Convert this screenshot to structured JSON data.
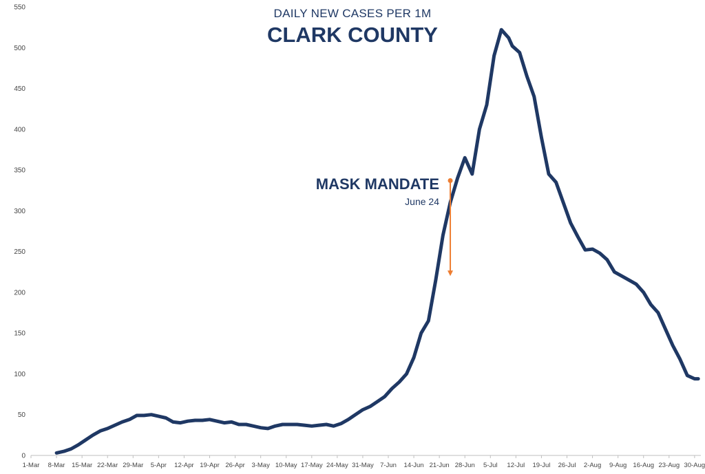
{
  "chart_data": {
    "type": "line",
    "subtitle": "DAILY NEW CASES PER 1M",
    "title": "CLARK COUNTY",
    "xlabel": "",
    "ylabel": "",
    "ylim": [
      0,
      550
    ],
    "yticks": [
      0,
      50,
      100,
      150,
      200,
      250,
      300,
      350,
      400,
      450,
      500,
      550
    ],
    "x_tick_labels": [
      "1-Mar",
      "8-Mar",
      "15-Mar",
      "22-Mar",
      "29-Mar",
      "5-Apr",
      "12-Apr",
      "19-Apr",
      "26-Apr",
      "3-May",
      "10-May",
      "17-May",
      "24-May",
      "31-May",
      "7-Jun",
      "14-Jun",
      "21-Jun",
      "28-Jun",
      "5-Jul",
      "12-Jul",
      "19-Jul",
      "26-Jul",
      "2-Aug",
      "9-Aug",
      "16-Aug",
      "23-Aug",
      "30-Aug"
    ],
    "grid": false,
    "line_color": "#1f3864",
    "annotation": {
      "title": "MASK MANDATE",
      "subtitle": "June 24",
      "x": "24-Jun",
      "y_from": 337,
      "y_to": 220,
      "color": "#ed7d31"
    },
    "series": [
      {
        "x": [
          "8-Mar",
          "10-Mar",
          "12-Mar",
          "14-Mar",
          "16-Mar",
          "18-Mar",
          "20-Mar",
          "22-Mar",
          "24-Mar",
          "26-Mar",
          "28-Mar",
          "30-Mar",
          "1-Apr",
          "3-Apr",
          "5-Apr",
          "7-Apr",
          "9-Apr",
          "11-Apr",
          "13-Apr",
          "15-Apr",
          "17-Apr",
          "19-Apr",
          "21-Apr",
          "23-Apr",
          "25-Apr",
          "27-Apr",
          "29-Apr",
          "1-May",
          "3-May",
          "5-May",
          "7-May",
          "9-May",
          "11-May",
          "13-May",
          "15-May",
          "17-May",
          "19-May",
          "21-May",
          "23-May",
          "25-May",
          "27-May",
          "29-May",
          "31-May",
          "2-Jun",
          "4-Jun",
          "6-Jun",
          "8-Jun",
          "10-Jun",
          "12-Jun",
          "14-Jun",
          "16-Jun",
          "18-Jun",
          "20-Jun",
          "22-Jun",
          "24-Jun",
          "26-Jun",
          "28-Jun",
          "30-Jun",
          "2-Jul",
          "4-Jul",
          "6-Jul",
          "8-Jul",
          "10-Jul",
          "11-Jul",
          "12-Jul",
          "13-Jul",
          "15-Jul",
          "17-Jul",
          "19-Jul",
          "21-Jul",
          "23-Jul",
          "25-Jul",
          "27-Jul",
          "29-Jul",
          "31-Jul",
          "2-Aug",
          "4-Aug",
          "6-Aug",
          "8-Aug",
          "10-Aug",
          "12-Aug",
          "14-Aug",
          "16-Aug",
          "18-Aug",
          "20-Aug",
          "22-Aug",
          "24-Aug",
          "26-Aug",
          "28-Aug",
          "30-Aug",
          "31-Aug"
        ],
        "values": [
          3,
          5,
          8,
          13,
          19,
          25,
          30,
          33,
          37,
          41,
          44,
          49,
          49,
          50,
          48,
          46,
          41,
          40,
          42,
          43,
          43,
          44,
          42,
          40,
          41,
          38,
          38,
          36,
          34,
          33,
          36,
          38,
          38,
          38,
          37,
          36,
          37,
          38,
          36,
          39,
          44,
          50,
          56,
          60,
          66,
          72,
          82,
          90,
          100,
          120,
          150,
          165,
          215,
          270,
          310,
          340,
          365,
          345,
          400,
          430,
          490,
          522,
          512,
          502,
          498,
          494,
          465,
          440,
          390,
          345,
          335,
          310,
          285,
          268,
          252,
          253,
          248,
          240,
          225,
          220,
          215,
          210,
          200,
          185,
          175,
          155,
          135,
          118,
          98,
          94,
          94
        ]
      }
    ]
  }
}
